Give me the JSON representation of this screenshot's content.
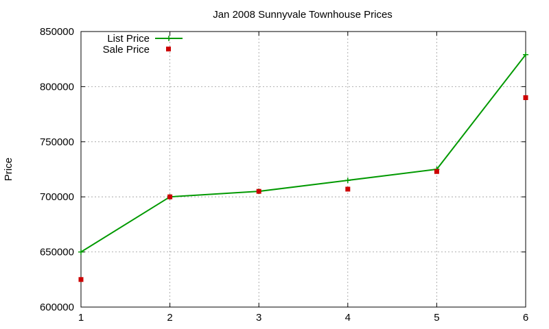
{
  "chart_data": {
    "type": "line",
    "title": "Jan 2008 Sunnyvale Townhouse Prices",
    "xlabel": "",
    "ylabel": "Price",
    "x": [
      1,
      2,
      3,
      4,
      5,
      6
    ],
    "xlim": [
      1,
      6
    ],
    "ylim": [
      600000,
      850000
    ],
    "x_ticks": [
      "1",
      "2",
      "3",
      "4",
      "5",
      "6"
    ],
    "y_ticks": [
      "600000",
      "650000",
      "700000",
      "750000",
      "800000",
      "850000"
    ],
    "grid": true,
    "legend_position": "top-left",
    "series": [
      {
        "name": "List Price",
        "style": "linespoints",
        "marker": "plus",
        "color": "#009900",
        "values": [
          650000,
          700000,
          705000,
          715000,
          725000,
          829000
        ]
      },
      {
        "name": "Sale Price",
        "style": "points",
        "marker": "square",
        "color": "#cc0000",
        "values": [
          625000,
          700000,
          705000,
          707000,
          723000,
          790000
        ]
      }
    ]
  }
}
